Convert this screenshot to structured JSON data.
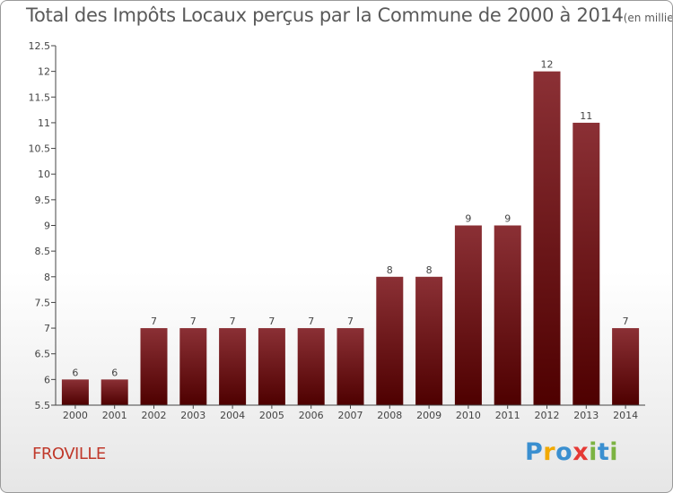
{
  "header": {
    "title": "Total des Impôts Locaux perçus par la Commune de 2000 à 2014",
    "unit": "(en milliers d'€)"
  },
  "commune": "FROVILLE",
  "logo": {
    "letters": [
      "P",
      "r",
      "o",
      "x",
      "i",
      "t",
      "i"
    ],
    "colors": [
      "#3a8fd0",
      "#f2a900",
      "#3a8fd0",
      "#e53935",
      "#7cb342",
      "#3a8fd0",
      "#7cb342"
    ]
  },
  "chart_data": {
    "type": "bar",
    "title": "Total des Impôts Locaux perçus par la Commune de 2000 à 2014",
    "xlabel": "",
    "ylabel": "en milliers d'€",
    "categories": [
      "2000",
      "2001",
      "2002",
      "2003",
      "2004",
      "2005",
      "2006",
      "2007",
      "2008",
      "2009",
      "2010",
      "2011",
      "2012",
      "2013",
      "2014"
    ],
    "values": [
      6,
      6,
      7,
      7,
      7,
      7,
      7,
      7,
      8,
      8,
      9,
      9,
      12,
      11,
      7
    ],
    "ylim": [
      5.5,
      12.5
    ],
    "yticks": [
      "5.5",
      "6",
      "6.5",
      "7",
      "7.5",
      "8",
      "8.5",
      "9",
      "9.5",
      "10",
      "10.5",
      "11",
      "11.5",
      "12",
      "12.5"
    ],
    "bar_color_top": "#8b3035",
    "bar_color_bottom": "#4e0000"
  }
}
